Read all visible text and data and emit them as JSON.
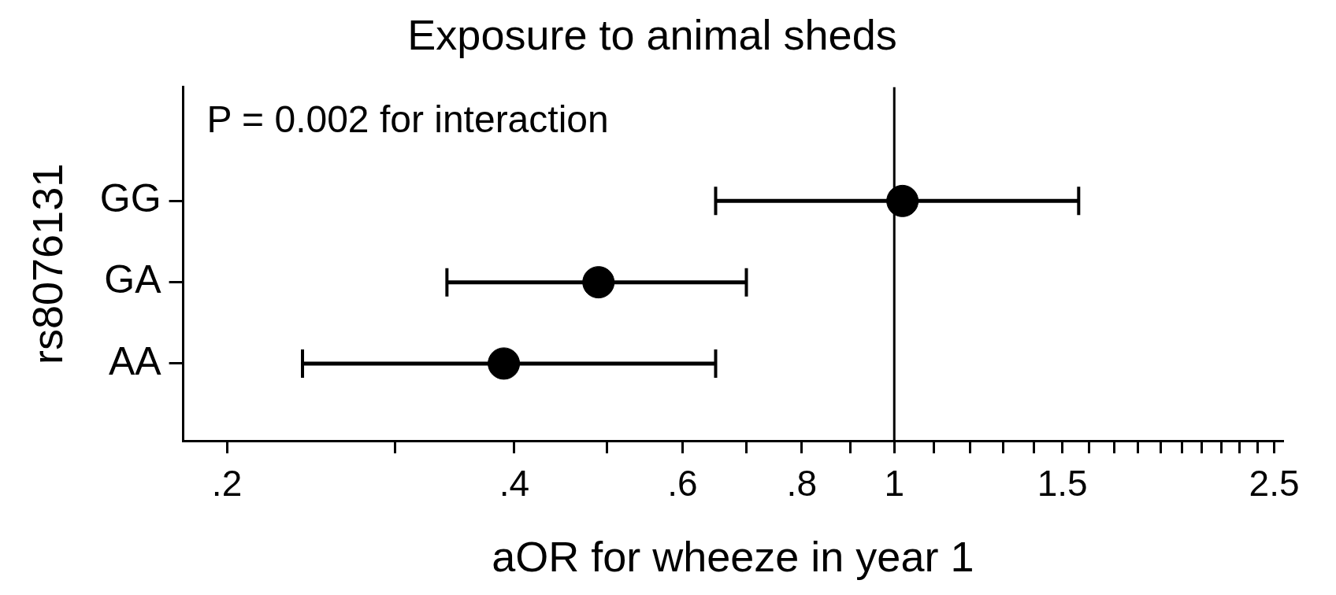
{
  "chart_data": {
    "type": "scatter",
    "title": "Exposure to animal sheds",
    "xlabel": "aOR for wheeze in year 1",
    "ylabel": "rs8076131",
    "categories": [
      "GG",
      "GA",
      "AA"
    ],
    "values": [
      1.02,
      0.49,
      0.39
    ],
    "errors": [
      [
        0.65,
        1.56
      ],
      [
        0.34,
        0.7
      ],
      [
        0.24,
        0.65
      ]
    ],
    "color": "#000000",
    "marker": "circle",
    "orientation": "horizontal",
    "log": "x",
    "xlim": [
      0.18,
      2.55
    ],
    "xticks": [
      {
        "value": 0.2,
        "label": ".2"
      },
      {
        "value": 0.3,
        "label": null
      },
      {
        "value": 0.4,
        "label": ".4"
      },
      {
        "value": 0.5,
        "label": null
      },
      {
        "value": 0.6,
        "label": ".6"
      },
      {
        "value": 0.7,
        "label": null
      },
      {
        "value": 0.8,
        "label": ".8"
      },
      {
        "value": 0.9,
        "label": null
      },
      {
        "value": 1,
        "label": "1"
      },
      {
        "value": 1.1,
        "label": null
      },
      {
        "value": 1.2,
        "label": null
      },
      {
        "value": 1.3,
        "label": null
      },
      {
        "value": 1.4,
        "label": null
      },
      {
        "value": 1.5,
        "label": "1.5"
      },
      {
        "value": 1.6,
        "label": null
      },
      {
        "value": 1.7,
        "label": null
      },
      {
        "value": 1.8,
        "label": null
      },
      {
        "value": 1.9,
        "label": null
      },
      {
        "value": 2,
        "label": null
      },
      {
        "value": 2.1,
        "label": null
      },
      {
        "value": 2.2,
        "label": null
      },
      {
        "value": 2.3,
        "label": null
      },
      {
        "value": 2.4,
        "label": null
      },
      {
        "value": 2.5,
        "label": "2.5"
      }
    ],
    "ref_lines": [
      {
        "axis": "x",
        "value": 1,
        "color": "#000000"
      }
    ],
    "annotations": [
      "P = 0.002 for interaction"
    ],
    "grid": false,
    "legend": false
  }
}
